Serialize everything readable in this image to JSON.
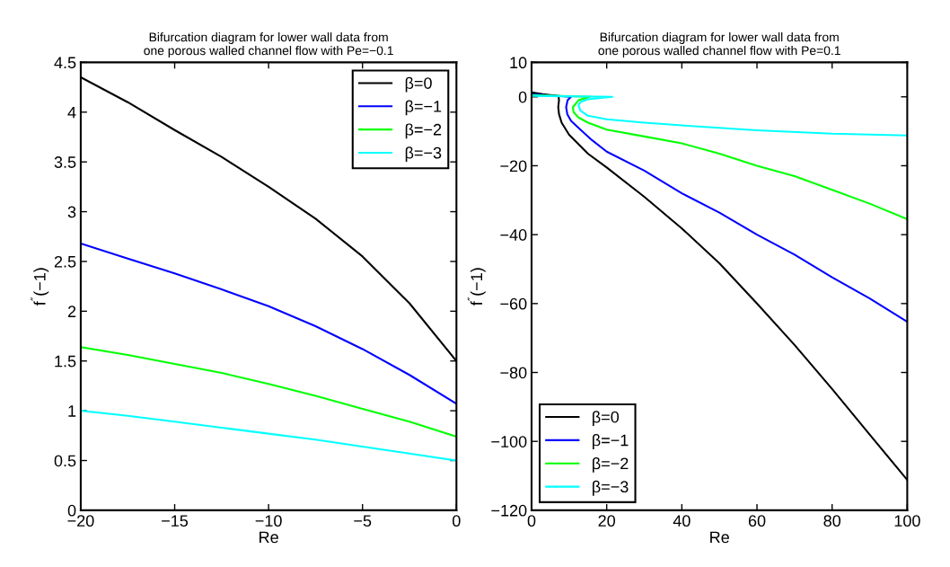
{
  "chart_data": [
    {
      "type": "line",
      "title": "Bifurcation diagram for lower wall data from\none porous walled channel flow with Pe=−0.1",
      "xlabel": "Re",
      "ylabel": "f$^{″}$(−1)",
      "x": [
        -20,
        -17.5,
        -15,
        -12.5,
        -10,
        -7.5,
        -5,
        -2.5,
        0
      ],
      "series": [
        {
          "name": "β=0",
          "color": "#000000",
          "values": [
            4.35,
            4.1,
            3.82,
            3.55,
            3.25,
            2.93,
            2.55,
            2.08,
            1.5
          ]
        },
        {
          "name": "β=−1",
          "color": "#0000ff",
          "values": [
            2.68,
            2.53,
            2.38,
            2.22,
            2.05,
            1.85,
            1.62,
            1.36,
            1.07
          ]
        },
        {
          "name": "β=−2",
          "color": "#00ff00",
          "values": [
            1.64,
            1.56,
            1.47,
            1.38,
            1.27,
            1.15,
            1.02,
            0.89,
            0.74
          ]
        },
        {
          "name": "β=−3",
          "color": "#00ffff",
          "values": [
            1.0,
            0.95,
            0.89,
            0.83,
            0.77,
            0.71,
            0.64,
            0.57,
            0.5
          ]
        }
      ],
      "xlim": [
        -20,
        0
      ],
      "xticks": [
        -20,
        -15,
        -10,
        -5,
        0
      ],
      "ylim": [
        0,
        4.5
      ],
      "yticks": [
        0,
        0.5,
        1,
        1.5,
        2,
        2.5,
        3,
        3.5,
        4,
        4.5
      ],
      "legend": "top right",
      "grid": false,
      "marker": "none",
      "line_style": "solid"
    },
    {
      "type": "line",
      "title": "Bifurcation diagram for lower wall data from\none porous walled channel flow with Pe=0.1",
      "xlabel": "Re",
      "ylabel": "f$^{″}$(−1)",
      "series": [
        {
          "name": "β=0",
          "color": "#000000",
          "x": [
            0,
            3,
            6,
            7.2,
            7.3,
            7.1,
            7.3,
            8,
            10,
            15,
            20,
            30,
            40,
            50,
            60,
            70,
            80,
            90,
            100
          ],
          "values": [
            1.3,
            0.8,
            0.4,
            0.2,
            -1,
            -3,
            -5,
            -7.5,
            -11,
            -16.5,
            -20.5,
            -29,
            -38.2,
            -48.3,
            -60,
            -72,
            -84.8,
            -98,
            -111.2
          ]
        },
        {
          "name": "β=−1",
          "color": "#0000ff",
          "x": [
            0,
            10.5,
            9.6,
            9.2,
            9.5,
            10.5,
            13,
            16,
            20,
            30,
            40,
            50,
            60,
            70,
            80,
            90,
            100
          ],
          "values": [
            0.8,
            0,
            -1,
            -3,
            -5,
            -7,
            -9.5,
            -12.5,
            -15.9,
            -21.4,
            -28,
            -33.6,
            -40,
            -45.8,
            -52.4,
            -58.5,
            -65.3
          ]
        },
        {
          "name": "β=−2",
          "color": "#00ff00",
          "x": [
            0,
            15.5,
            12.5,
            11,
            11.2,
            12.5,
            15,
            20,
            30,
            40,
            50,
            60,
            70,
            80,
            90,
            100
          ],
          "values": [
            0.5,
            0,
            -1,
            -3,
            -4.5,
            -6,
            -7.5,
            -9.5,
            -11.5,
            -13.5,
            -16.5,
            -20,
            -23,
            -27,
            -31,
            -35.5
          ]
        },
        {
          "name": "β=−3",
          "color": "#00ffff",
          "x": [
            0,
            21.5,
            15,
            13,
            12.5,
            13,
            15,
            20,
            30,
            40,
            60,
            80,
            100
          ],
          "values": [
            0.3,
            0,
            -0.7,
            -1.5,
            -2.5,
            -4,
            -5.5,
            -6.5,
            -7.5,
            -8.3,
            -9.7,
            -10.7,
            -11.2
          ]
        }
      ],
      "xlim": [
        0,
        100
      ],
      "xticks": [
        0,
        20,
        40,
        60,
        80,
        100
      ],
      "ylim": [
        -120,
        10
      ],
      "yticks": [
        -120,
        -100,
        -80,
        -60,
        -40,
        -20,
        0,
        10
      ],
      "legend": "bottom left",
      "grid": false,
      "marker": "none",
      "line_style": "solid"
    }
  ]
}
